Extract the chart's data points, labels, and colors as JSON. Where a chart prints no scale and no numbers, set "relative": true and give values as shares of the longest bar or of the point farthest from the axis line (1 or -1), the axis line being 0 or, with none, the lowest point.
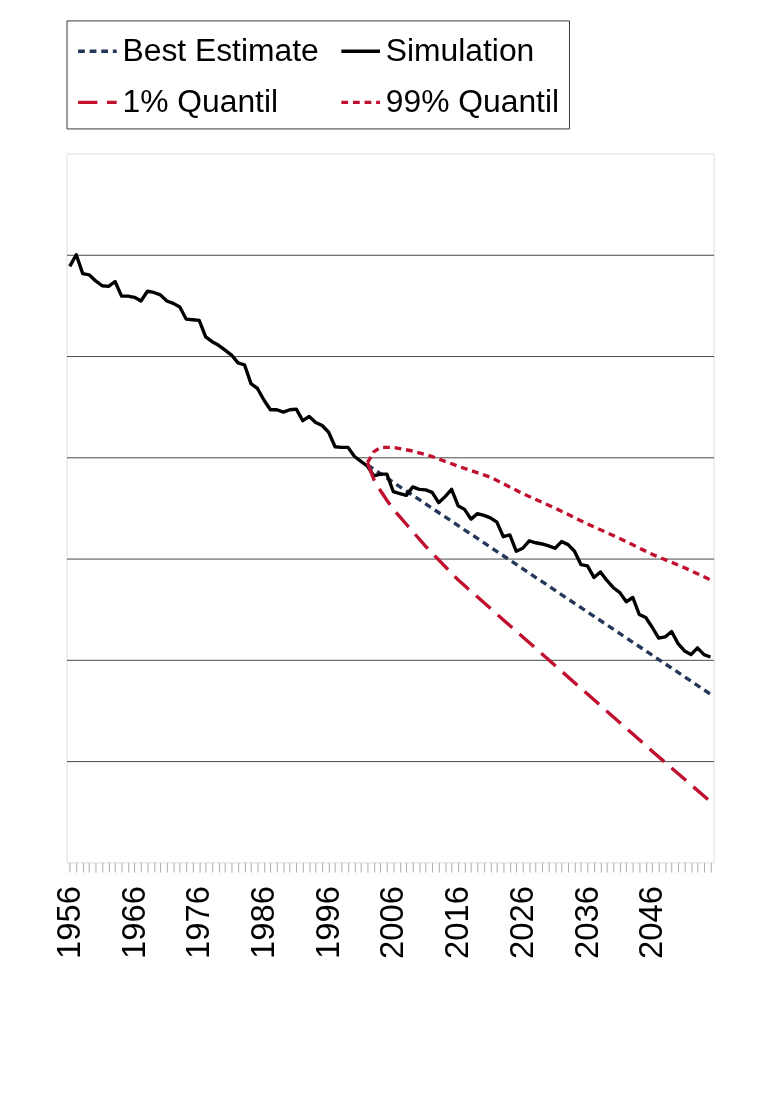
{
  "chart_data": {
    "type": "line",
    "relative": true,
    "x": [
      1956,
      1957,
      1958,
      1959,
      1960,
      1961,
      1962,
      1963,
      1964,
      1965,
      1966,
      1967,
      1968,
      1969,
      1970,
      1971,
      1972,
      1973,
      1974,
      1975,
      1976,
      1977,
      1978,
      1979,
      1980,
      1981,
      1982,
      1983,
      1984,
      1985,
      1986,
      1987,
      1988,
      1989,
      1990,
      1991,
      1992,
      1993,
      1994,
      1995,
      1996,
      1997,
      1998,
      1999,
      2000,
      2001,
      2002,
      2003,
      2004,
      2005,
      2006,
      2007,
      2008,
      2009,
      2010,
      2011,
      2012,
      2013,
      2014,
      2015,
      2016,
      2017,
      2018,
      2019,
      2020,
      2021,
      2022,
      2023,
      2024,
      2025,
      2026,
      2027,
      2028,
      2029,
      2030,
      2031,
      2032,
      2033,
      2034,
      2035,
      2036,
      2037,
      2038,
      2039,
      2040,
      2041,
      2042,
      2043,
      2044,
      2045,
      2046,
      2047,
      2048,
      2049,
      2050,
      2051,
      2052,
      2053,
      2054,
      2055
    ],
    "xlim": [
      1955.5,
      2055.5
    ],
    "xticks": [
      1956,
      {
        "value": 1957,
        "label": null
      },
      {
        "value": 1958,
        "label": null
      },
      {
        "value": 1959,
        "label": null
      },
      {
        "value": 1960,
        "label": null
      },
      {
        "value": 1961,
        "label": null
      },
      {
        "value": 1962,
        "label": null
      },
      {
        "value": 1963,
        "label": null
      },
      {
        "value": 1964,
        "label": null
      },
      {
        "value": 1965,
        "label": null
      },
      1966,
      {
        "value": 1967,
        "label": null
      },
      {
        "value": 1968,
        "label": null
      },
      {
        "value": 1969,
        "label": null
      },
      {
        "value": 1970,
        "label": null
      },
      {
        "value": 1971,
        "label": null
      },
      {
        "value": 1972,
        "label": null
      },
      {
        "value": 1973,
        "label": null
      },
      {
        "value": 1974,
        "label": null
      },
      {
        "value": 1975,
        "label": null
      },
      1976,
      {
        "value": 1977,
        "label": null
      },
      {
        "value": 1978,
        "label": null
      },
      {
        "value": 1979,
        "label": null
      },
      {
        "value": 1980,
        "label": null
      },
      {
        "value": 1981,
        "label": null
      },
      {
        "value": 1982,
        "label": null
      },
      {
        "value": 1983,
        "label": null
      },
      {
        "value": 1984,
        "label": null
      },
      {
        "value": 1985,
        "label": null
      },
      1986,
      {
        "value": 1987,
        "label": null
      },
      {
        "value": 1988,
        "label": null
      },
      {
        "value": 1989,
        "label": null
      },
      {
        "value": 1990,
        "label": null
      },
      {
        "value": 1991,
        "label": null
      },
      {
        "value": 1992,
        "label": null
      },
      {
        "value": 1993,
        "label": null
      },
      {
        "value": 1994,
        "label": null
      },
      {
        "value": 1995,
        "label": null
      },
      1996,
      {
        "value": 1997,
        "label": null
      },
      {
        "value": 1998,
        "label": null
      },
      {
        "value": 1999,
        "label": null
      },
      {
        "value": 2000,
        "label": null
      },
      {
        "value": 2001,
        "label": null
      },
      {
        "value": 2002,
        "label": null
      },
      {
        "value": 2003,
        "label": null
      },
      {
        "value": 2004,
        "label": null
      },
      {
        "value": 2005,
        "label": null
      },
      2006,
      {
        "value": 2007,
        "label": null
      },
      {
        "value": 2008,
        "label": null
      },
      {
        "value": 2009,
        "label": null
      },
      {
        "value": 2010,
        "label": null
      },
      {
        "value": 2011,
        "label": null
      },
      {
        "value": 2012,
        "label": null
      },
      {
        "value": 2013,
        "label": null
      },
      {
        "value": 2014,
        "label": null
      },
      {
        "value": 2015,
        "label": null
      },
      2016,
      {
        "value": 2017,
        "label": null
      },
      {
        "value": 2018,
        "label": null
      },
      {
        "value": 2019,
        "label": null
      },
      {
        "value": 2020,
        "label": null
      },
      {
        "value": 2021,
        "label": null
      },
      {
        "value": 2022,
        "label": null
      },
      {
        "value": 2023,
        "label": null
      },
      {
        "value": 2024,
        "label": null
      },
      {
        "value": 2025,
        "label": null
      },
      2026,
      {
        "value": 2027,
        "label": null
      },
      {
        "value": 2028,
        "label": null
      },
      {
        "value": 2029,
        "label": null
      },
      {
        "value": 2030,
        "label": null
      },
      {
        "value": 2031,
        "label": null
      },
      {
        "value": 2032,
        "label": null
      },
      {
        "value": 2033,
        "label": null
      },
      {
        "value": 2034,
        "label": null
      },
      {
        "value": 2035,
        "label": null
      },
      2036,
      {
        "value": 2037,
        "label": null
      },
      {
        "value": 2038,
        "label": null
      },
      {
        "value": 2039,
        "label": null
      },
      {
        "value": 2040,
        "label": null
      },
      {
        "value": 2041,
        "label": null
      },
      {
        "value": 2042,
        "label": null
      },
      {
        "value": 2043,
        "label": null
      },
      {
        "value": 2044,
        "label": null
      },
      {
        "value": 2045,
        "label": null
      },
      2046,
      {
        "value": 2047,
        "label": null
      },
      {
        "value": 2048,
        "label": null
      },
      {
        "value": 2049,
        "label": null
      },
      {
        "value": 2050,
        "label": null
      },
      {
        "value": 2051,
        "label": null
      },
      {
        "value": 2052,
        "label": null
      },
      {
        "value": 2053,
        "label": null
      },
      {
        "value": 2054,
        "label": null
      },
      {
        "value": 2055,
        "label": null
      }
    ],
    "grid": "y",
    "legend": "top",
    "series": [
      {
        "name": "Best Estimate",
        "color": "#243659",
        "line_style": "dotted",
        "x": [
          2002,
          2055
        ],
        "values": [
          0.654,
          0.277
        ]
      },
      {
        "name": "Simulation",
        "color": "#000000",
        "line_style": "solid",
        "values": [
          0.981,
          1.0,
          0.969,
          0.967,
          0.957,
          0.949,
          0.948,
          0.956,
          0.932,
          0.932,
          0.93,
          0.924,
          0.94,
          0.938,
          0.934,
          0.924,
          0.92,
          0.914,
          0.894,
          0.893,
          0.892,
          0.865,
          0.857,
          0.851,
          0.843,
          0.835,
          0.822,
          0.819,
          0.788,
          0.78,
          0.761,
          0.745,
          0.745,
          0.741,
          0.745,
          0.746,
          0.727,
          0.734,
          0.724,
          0.719,
          0.708,
          0.684,
          0.683,
          0.683,
          0.668,
          0.66,
          0.652,
          0.636,
          0.639,
          0.639,
          0.61,
          0.607,
          0.604,
          0.618,
          0.614,
          0.613,
          0.609,
          0.592,
          0.602,
          0.614,
          0.587,
          0.581,
          0.565,
          0.574,
          0.571,
          0.567,
          0.56,
          0.536,
          0.539,
          0.512,
          0.517,
          0.529,
          0.526,
          0.524,
          0.521,
          0.517,
          0.528,
          0.523,
          0.512,
          0.49,
          0.488,
          0.469,
          0.478,
          0.464,
          0.452,
          0.444,
          0.429,
          0.436,
          0.408,
          0.403,
          0.387,
          0.369,
          0.371,
          0.38,
          0.36,
          0.348,
          0.342,
          0.353,
          0.342,
          0.338
        ]
      },
      {
        "name": "1% Quantil",
        "color": "#c00f2f",
        "line_style": "dashed",
        "x": [
          2002,
          2003,
          2004,
          2005,
          2006,
          2011,
          2016,
          2026,
          2036,
          2046,
          2055
        ],
        "values": [
          0.658,
          0.63,
          0.612,
          0.596,
          0.581,
          0.52,
          0.465,
          0.371,
          0.277,
          0.183,
          0.1
        ]
      },
      {
        "name": "99% Quantil",
        "color": "#c00f2f",
        "line_style": "dotted",
        "x": [
          2002,
          2003,
          2004,
          2006,
          2009,
          2012,
          2016,
          2021,
          2026,
          2031,
          2036,
          2041,
          2046,
          2051,
          2055
        ],
        "values": [
          0.658,
          0.676,
          0.683,
          0.683,
          0.677,
          0.668,
          0.652,
          0.634,
          0.607,
          0.583,
          0.557,
          0.533,
          0.507,
          0.485,
          0.465
        ]
      }
    ]
  }
}
